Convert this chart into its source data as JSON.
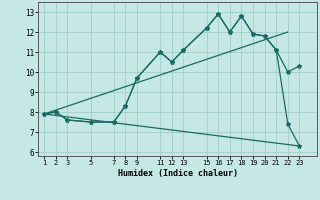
{
  "xlabel": "Humidex (Indice chaleur)",
  "x_ticks": [
    1,
    2,
    3,
    5,
    7,
    8,
    9,
    11,
    12,
    13,
    15,
    16,
    17,
    18,
    19,
    20,
    21,
    22,
    23
  ],
  "ylim": [
    5.8,
    13.5
  ],
  "xlim": [
    0.5,
    24.5
  ],
  "yticks": [
    6,
    7,
    8,
    9,
    10,
    11,
    12,
    13
  ],
  "bg_color": "#c5e8e5",
  "grid_color": "#a8d0cc",
  "line_color": "#1a6b65",
  "line1_x": [
    1,
    2,
    3,
    5,
    7,
    8,
    9,
    11,
    12,
    13,
    15,
    16,
    17,
    18,
    19,
    20,
    21,
    22,
    23
  ],
  "line1_y": [
    7.9,
    8.0,
    7.6,
    7.5,
    7.5,
    8.3,
    9.7,
    11.0,
    10.5,
    11.1,
    12.2,
    12.9,
    12.0,
    12.8,
    11.9,
    11.8,
    11.1,
    10.0,
    10.3
  ],
  "line2_x": [
    1,
    2,
    3,
    5,
    7,
    8,
    9,
    11,
    12,
    13,
    15,
    16,
    17,
    18,
    19,
    20,
    21,
    22,
    23
  ],
  "line2_y": [
    7.9,
    8.0,
    7.6,
    7.5,
    7.5,
    8.3,
    9.7,
    11.0,
    10.5,
    11.1,
    12.2,
    12.9,
    12.0,
    12.8,
    11.9,
    11.8,
    11.1,
    7.4,
    6.3
  ],
  "line3_x": [
    1,
    22
  ],
  "line3_y": [
    7.9,
    12.0
  ],
  "line4_x": [
    1,
    23
  ],
  "line4_y": [
    7.9,
    6.3
  ]
}
